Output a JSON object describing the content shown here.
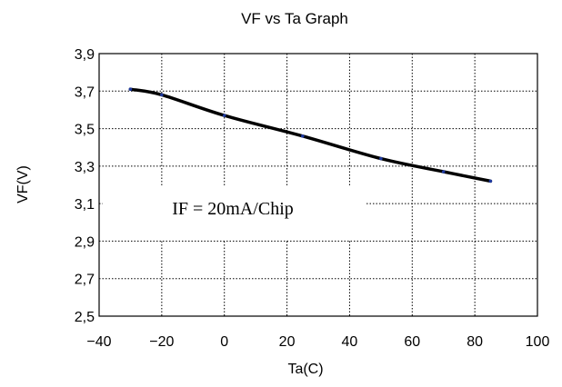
{
  "chart_data": {
    "type": "line",
    "title": "VF vs Ta  Graph",
    "xlabel": "Ta(C)",
    "ylabel": "VF(V)",
    "xlim": [
      -40,
      100
    ],
    "ylim": [
      2.5,
      3.9
    ],
    "x_ticks": [
      -40,
      -20,
      0,
      20,
      40,
      60,
      80,
      100
    ],
    "y_ticks": [
      2.5,
      2.7,
      2.9,
      3.1,
      3.3,
      3.5,
      3.7,
      3.9
    ],
    "x_tick_labels": [
      "−40",
      "−20",
      "0",
      "20",
      "40",
      "60",
      "80",
      "100"
    ],
    "y_tick_labels": [
      "2,5",
      "2,7",
      "2,9",
      "3,1",
      "3,3",
      "3,5",
      "3,7",
      "3,9"
    ],
    "grid": true,
    "grid_style": "dotted",
    "annotation": "IF = 20mA/Chip",
    "series": [
      {
        "color": "#000000",
        "marker_color": "#1f3aa0",
        "x": [
          -30,
          -20,
          0,
          25,
          50,
          70,
          85
        ],
        "y": [
          3.71,
          3.68,
          3.57,
          3.46,
          3.34,
          3.27,
          3.22
        ]
      }
    ]
  }
}
